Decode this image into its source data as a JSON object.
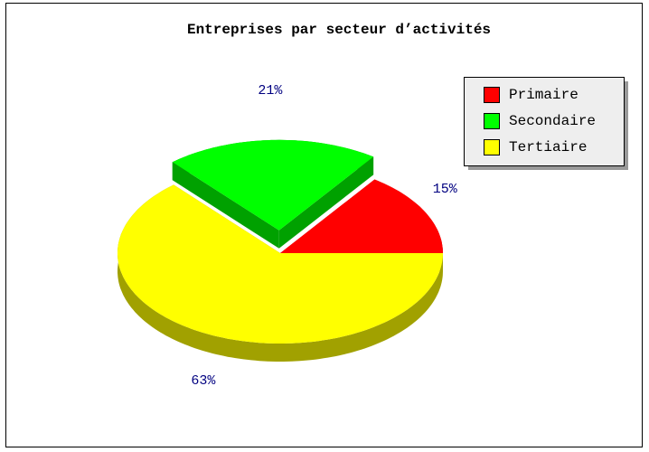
{
  "chart_data": {
    "type": "pie",
    "title": "Entreprises par secteur d’activités",
    "categories": [
      "Primaire",
      "Secondaire",
      "Tertiaire"
    ],
    "values": [
      15,
      21,
      63
    ],
    "value_labels": [
      "15%",
      "21%",
      "63%"
    ],
    "colors": [
      "#ff0000",
      "#00ff00",
      "#ffff00"
    ],
    "legend": "upper right"
  }
}
